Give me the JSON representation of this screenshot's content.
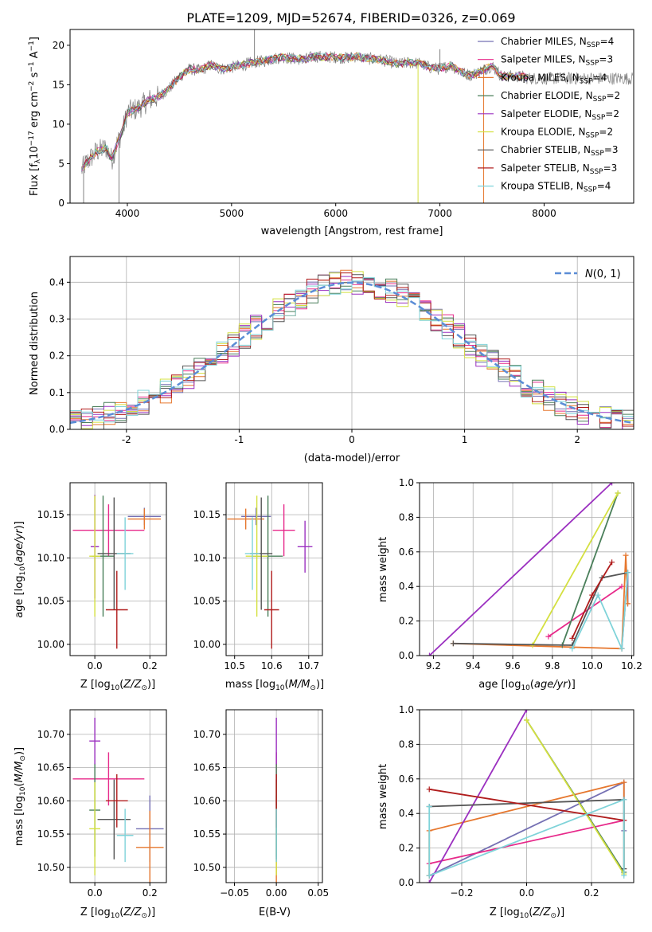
{
  "figure": {
    "title": "PLATE=1209, MJD=52674, FIBERID=0326, z=0.069"
  },
  "palette": {
    "Chabrier MILES": "#7570b3",
    "Salpeter MILES": "#e7298a",
    "Kroupa MILES": "#e6772e",
    "Chabrier ELODIE": "#4a7f5a",
    "Salpeter ELODIE": "#9b30c0",
    "Kroupa ELODIE": "#d4e040",
    "Chabrier STELIB": "#555555",
    "Salpeter STELIB": "#b01c1c",
    "Kroupa STELIB": "#7fd3d9",
    "gaussian": "#5b8dd6",
    "data": "#808080"
  },
  "chart_data": [
    {
      "id": "spectrum",
      "type": "line",
      "title": "PLATE=1209, MJD=52674, FIBERID=0326, z=0.069",
      "xlabel": "wavelength [Angstrom, rest frame]",
      "ylabel": "Flux [f_λ 10^-17 erg cm^-2 s^-1 A^-1]",
      "xlim": [
        3450,
        8860
      ],
      "ylim": [
        0,
        22
      ],
      "xticks": [
        4000,
        5000,
        6000,
        7000,
        8000
      ],
      "yticks": [
        0,
        5,
        10,
        15,
        20
      ],
      "grid": false,
      "legend_position": "top-right",
      "legend": [
        {
          "label": "Chabrier MILES, N_SSP=4",
          "main": "Chabrier MILES, N",
          "sub": "SSP",
          "tail": "=4"
        },
        {
          "label": "Salpeter MILES, N_SSP=3",
          "main": "Salpeter MILES, N",
          "sub": "SSP",
          "tail": "=3"
        },
        {
          "label": "Kroupa MILES, N_SSP=4",
          "main": "Kroupa MILES, N",
          "sub": "SSP",
          "tail": "=4"
        },
        {
          "label": "Chabrier ELODIE, N_SSP=2",
          "main": "Chabrier ELODIE, N",
          "sub": "SSP",
          "tail": "=2"
        },
        {
          "label": "Salpeter ELODIE, N_SSP=2",
          "main": "Salpeter ELODIE, N",
          "sub": "SSP",
          "tail": "=2"
        },
        {
          "label": "Kroupa ELODIE, N_SSP=2",
          "main": "Kroupa ELODIE, N",
          "sub": "SSP",
          "tail": "=2"
        },
        {
          "label": "Chabrier STELIB, N_SSP=3",
          "main": "Chabrier STELIB, N",
          "sub": "SSP",
          "tail": "=3"
        },
        {
          "label": "Salpeter STELIB, N_SSP=3",
          "main": "Salpeter STELIB, N",
          "sub": "SSP",
          "tail": "=3"
        },
        {
          "label": "Kroupa STELIB, N_SSP=4",
          "main": "Kroupa STELIB, N",
          "sub": "SSP",
          "tail": "=4"
        }
      ],
      "continuum": [
        [
          3560,
          4.2
        ],
        [
          3600,
          5.0
        ],
        [
          3700,
          6.5
        ],
        [
          3800,
          7.0
        ],
        [
          3850,
          5.5
        ],
        [
          3900,
          7.5
        ],
        [
          3950,
          9.0
        ],
        [
          4000,
          11.5
        ],
        [
          4100,
          12.0
        ],
        [
          4200,
          13.0
        ],
        [
          4300,
          13.5
        ],
        [
          4400,
          14.5
        ],
        [
          4500,
          16.0
        ],
        [
          4600,
          17.0
        ],
        [
          4700,
          16.8
        ],
        [
          4800,
          17.5
        ],
        [
          4900,
          17.0
        ],
        [
          5000,
          17.2
        ],
        [
          5100,
          17.5
        ],
        [
          5200,
          17.8
        ],
        [
          5300,
          18.0
        ],
        [
          5400,
          18.3
        ],
        [
          5500,
          18.5
        ],
        [
          5600,
          18.3
        ],
        [
          5700,
          18.2
        ],
        [
          5800,
          18.6
        ],
        [
          5900,
          18.5
        ],
        [
          6000,
          18.5
        ],
        [
          6100,
          18.4
        ],
        [
          6200,
          18.6
        ],
        [
          6300,
          18.3
        ],
        [
          6400,
          18.2
        ],
        [
          6500,
          18.0
        ],
        [
          6600,
          17.6
        ],
        [
          6700,
          17.8
        ],
        [
          6800,
          17.7
        ],
        [
          6900,
          17.2
        ],
        [
          7000,
          17.0
        ],
        [
          7100,
          17.5
        ],
        [
          7200,
          16.6
        ],
        [
          7300,
          16.2
        ],
        [
          7400,
          16.8
        ],
        [
          7500,
          17.4
        ],
        [
          7600,
          16.0
        ],
        [
          7700,
          16.1
        ],
        [
          7800,
          16.0
        ],
        [
          7850,
          15.8
        ]
      ],
      "spikes": [
        [
          3580,
          0
        ],
        [
          3920,
          0
        ],
        [
          5220,
          22
        ],
        [
          6790,
          0
        ],
        [
          7420,
          0
        ],
        [
          7000,
          19.5
        ]
      ]
    },
    {
      "id": "residuals",
      "type": "histogram",
      "xlabel": "(data-model)/error",
      "ylabel": "Normed distribution",
      "xlim": [
        -2.5,
        2.5
      ],
      "ylim": [
        0,
        0.47
      ],
      "xticks": [
        -2,
        -1,
        0,
        1,
        2
      ],
      "yticks": [
        0.0,
        0.1,
        0.2,
        0.3,
        0.4
      ],
      "grid": true,
      "legend_position": "top-right",
      "gaussian_label": "N(0,1)"
    },
    {
      "id": "age_vs_Z",
      "type": "scatter",
      "xlabel": "Z [log10(Z/Z_sun)]",
      "ylabel": "age [log10(age/yr)]",
      "xlim": [
        -0.09,
        0.26
      ],
      "ylim": [
        9.987,
        10.187
      ],
      "xticks": [
        0.0,
        0.2
      ],
      "yticks": [
        10.0,
        10.05,
        10.1,
        10.15
      ],
      "grid": true,
      "points": [
        {
          "series": "Chabrier MILES",
          "x": 0.18,
          "y": 10.148,
          "xerr": 0.06,
          "yerr": 0.01
        },
        {
          "series": "Salpeter MILES",
          "x": 0.05,
          "y": 10.132,
          "xerr": 0.13,
          "yerr": 0.03
        },
        {
          "series": "Kroupa MILES",
          "x": 0.18,
          "y": 10.145,
          "xerr": 0.06,
          "yerr": 0.012
        },
        {
          "series": "Chabrier ELODIE",
          "x": 0.03,
          "y": 10.102,
          "xerr": 0.04,
          "yerr": 0.07
        },
        {
          "series": "Salpeter ELODIE",
          "x": 0.0,
          "y": 10.113,
          "xerr": 0.015,
          "yerr": 0.06
        },
        {
          "series": "Kroupa ELODIE",
          "x": 0.0,
          "y": 10.102,
          "xerr": 0.02,
          "yerr": 0.07
        },
        {
          "series": "Chabrier STELIB",
          "x": 0.07,
          "y": 10.105,
          "xerr": 0.06,
          "yerr": 0.065
        },
        {
          "series": "Salpeter STELIB",
          "x": 0.08,
          "y": 10.04,
          "xerr": 0.04,
          "yerr": 0.045
        },
        {
          "series": "Kroupa STELIB",
          "x": 0.11,
          "y": 10.105,
          "xerr": 0.03,
          "yerr": 0.042
        }
      ]
    },
    {
      "id": "age_vs_mass",
      "type": "scatter",
      "xlabel": "mass [log10(M/M_sun)]",
      "ylabel": "",
      "xlim": [
        10.477,
        10.737
      ],
      "ylim": [
        9.987,
        10.187
      ],
      "xticks": [
        10.5,
        10.6,
        10.7
      ],
      "yticks": [
        10.0,
        10.05,
        10.1,
        10.15
      ],
      "grid": true,
      "points": [
        {
          "series": "Chabrier MILES",
          "x": 10.558,
          "y": 10.148,
          "xerr": 0.04,
          "yerr": 0.01
        },
        {
          "series": "Salpeter MILES",
          "x": 10.633,
          "y": 10.132,
          "xerr": 0.03,
          "yerr": 0.03
        },
        {
          "series": "Kroupa MILES",
          "x": 10.53,
          "y": 10.145,
          "xerr": 0.05,
          "yerr": 0.012
        },
        {
          "series": "Chabrier ELODIE",
          "x": 10.59,
          "y": 10.102,
          "xerr": 0.04,
          "yerr": 0.07
        },
        {
          "series": "Salpeter ELODIE",
          "x": 10.69,
          "y": 10.113,
          "xerr": 0.02,
          "yerr": 0.03
        },
        {
          "series": "Kroupa ELODIE",
          "x": 10.56,
          "y": 10.102,
          "xerr": 0.03,
          "yerr": 0.07
        },
        {
          "series": "Chabrier STELIB",
          "x": 10.572,
          "y": 10.105,
          "xerr": 0.03,
          "yerr": 0.065
        },
        {
          "series": "Salpeter STELIB",
          "x": 10.6,
          "y": 10.04,
          "xerr": 0.02,
          "yerr": 0.045
        },
        {
          "series": "Kroupa STELIB",
          "x": 10.548,
          "y": 10.105,
          "xerr": 0.02,
          "yerr": 0.042
        }
      ]
    },
    {
      "id": "mass_weight_vs_age",
      "type": "line",
      "xlabel": "age [log10(age/yr)]",
      "ylabel": "mass weight",
      "xlim": [
        9.13,
        10.21
      ],
      "ylim": [
        0,
        1
      ],
      "xticks": [
        9.2,
        9.4,
        9.6,
        9.8,
        10.0,
        10.2
      ],
      "yticks": [
        0.0,
        0.2,
        0.4,
        0.6,
        0.8,
        1.0
      ],
      "grid": true,
      "series": [
        {
          "name": "Chabrier MILES",
          "x": [
            10.15,
            10.18,
            10.18
          ],
          "y": [
            0.04,
            0.48,
            0.3
          ]
        },
        {
          "name": "Salpeter MILES",
          "x": [
            9.78,
            10.15
          ],
          "y": [
            0.11,
            0.4
          ]
        },
        {
          "name": "Kroupa MILES",
          "x": [
            9.3,
            10.15,
            10.17,
            10.18
          ],
          "y": [
            0.07,
            0.04,
            0.58,
            0.3
          ]
        },
        {
          "name": "Chabrier ELODIE",
          "x": [
            9.85,
            10.13
          ],
          "y": [
            0.06,
            0.94
          ]
        },
        {
          "name": "Salpeter ELODIE",
          "x": [
            9.18,
            10.1
          ],
          "y": [
            0.0,
            1.0
          ]
        },
        {
          "name": "Kroupa ELODIE",
          "x": [
            9.7,
            10.13
          ],
          "y": [
            0.06,
            0.94
          ]
        },
        {
          "name": "Chabrier STELIB",
          "x": [
            9.3,
            9.9,
            10.05,
            10.18
          ],
          "y": [
            0.07,
            0.06,
            0.45,
            0.48
          ]
        },
        {
          "name": "Salpeter STELIB",
          "x": [
            9.9,
            10.0,
            10.1
          ],
          "y": [
            0.1,
            0.35,
            0.54
          ]
        },
        {
          "name": "Kroupa STELIB",
          "x": [
            9.9,
            10.03,
            10.15,
            10.18
          ],
          "y": [
            0.04,
            0.35,
            0.04,
            0.48
          ]
        }
      ]
    },
    {
      "id": "mass_vs_Z",
      "type": "scatter",
      "xlabel": "Z [log10(Z/Z_sun)]",
      "ylabel": "mass [log10(M/M_sun)]",
      "xlim": [
        -0.09,
        0.26
      ],
      "ylim": [
        10.477,
        10.737
      ],
      "xticks": [
        0.0,
        0.2
      ],
      "yticks": [
        10.5,
        10.55,
        10.6,
        10.65,
        10.7
      ],
      "grid": true,
      "points": [
        {
          "series": "Chabrier MILES",
          "x": 0.2,
          "y": 10.558,
          "xerr": 0.05,
          "yerr": 0.05
        },
        {
          "series": "Salpeter MILES",
          "x": 0.05,
          "y": 10.633,
          "xerr": 0.13,
          "yerr": 0.04
        },
        {
          "series": "Kroupa MILES",
          "x": 0.2,
          "y": 10.53,
          "xerr": 0.05,
          "yerr": 0.055
        },
        {
          "series": "Chabrier ELODIE",
          "x": 0.0,
          "y": 10.586,
          "xerr": 0.02,
          "yerr": 0.07
        },
        {
          "series": "Salpeter ELODIE",
          "x": 0.0,
          "y": 10.69,
          "xerr": 0.02,
          "yerr": 0.035
        },
        {
          "series": "Kroupa ELODIE",
          "x": 0.0,
          "y": 10.558,
          "xerr": 0.02,
          "yerr": 0.07
        },
        {
          "series": "Chabrier STELIB",
          "x": 0.07,
          "y": 10.572,
          "xerr": 0.06,
          "yerr": 0.06
        },
        {
          "series": "Salpeter STELIB",
          "x": 0.08,
          "y": 10.6,
          "xerr": 0.04,
          "yerr": 0.04
        },
        {
          "series": "Kroupa STELIB",
          "x": 0.11,
          "y": 10.548,
          "xerr": 0.03,
          "yerr": 0.04
        }
      ]
    },
    {
      "id": "mass_vs_ebv",
      "type": "scatter",
      "xlabel": "E(B-V)",
      "ylabel": "",
      "xlim": [
        -0.06,
        0.055
      ],
      "ylim": [
        10.477,
        10.737
      ],
      "xticks": [
        -0.05,
        0.0,
        0.05
      ],
      "xtick_labels": [
        "−0.05",
        "0.00",
        "0.05"
      ],
      "yticks": [
        10.5,
        10.55,
        10.6,
        10.65,
        10.7
      ],
      "grid": true,
      "points": [
        {
          "series": "Chabrier MILES",
          "x": 0.0,
          "y": 10.558,
          "xerr": 0.0,
          "yerr": 0.05
        },
        {
          "series": "Salpeter MILES",
          "x": 0.0,
          "y": 10.633,
          "xerr": 0.0,
          "yerr": 0.04
        },
        {
          "series": "Kroupa MILES",
          "x": 0.0,
          "y": 10.53,
          "xerr": 0.0,
          "yerr": 0.055
        },
        {
          "series": "Chabrier ELODIE",
          "x": 0.0,
          "y": 10.586,
          "xerr": 0.0,
          "yerr": 0.07
        },
        {
          "series": "Salpeter ELODIE",
          "x": 0.0,
          "y": 10.69,
          "xerr": 0.0,
          "yerr": 0.035
        },
        {
          "series": "Kroupa ELODIE",
          "x": 0.0,
          "y": 10.558,
          "xerr": 0.0,
          "yerr": 0.07
        },
        {
          "series": "Chabrier STELIB",
          "x": 0.0,
          "y": 10.572,
          "xerr": 0.0,
          "yerr": 0.06
        },
        {
          "series": "Salpeter STELIB",
          "x": 0.0,
          "y": 10.6,
          "xerr": 0.0,
          "yerr": 0.04
        },
        {
          "series": "Kroupa STELIB",
          "x": 0.0,
          "y": 10.548,
          "xerr": 0.0,
          "yerr": 0.04
        }
      ]
    },
    {
      "id": "mass_weight_vs_Z",
      "type": "line",
      "xlabel": "Z [log10(Z/Z_sun)]",
      "ylabel": "mass weight",
      "xlim": [
        -0.33,
        0.33
      ],
      "ylim": [
        0,
        1
      ],
      "xticks": [
        -0.2,
        0.0,
        0.2
      ],
      "xtick_labels": [
        "−0.2",
        "0.0",
        "0.2"
      ],
      "yticks": [
        0.0,
        0.2,
        0.4,
        0.6,
        0.8,
        1.0
      ],
      "grid": true,
      "series": [
        {
          "name": "Chabrier MILES",
          "x": [
            -0.3,
            0.3,
            0.3
          ],
          "y": [
            0.04,
            0.58,
            0.3
          ]
        },
        {
          "name": "Salpeter MILES",
          "x": [
            -0.3,
            0.3
          ],
          "y": [
            0.11,
            0.36
          ]
        },
        {
          "name": "Kroupa MILES",
          "x": [
            -0.3,
            -0.3,
            0.3,
            0.3
          ],
          "y": [
            0.04,
            0.3,
            0.58,
            0.08
          ]
        },
        {
          "name": "Chabrier ELODIE",
          "x": [
            0.0,
            0.3
          ],
          "y": [
            0.94,
            0.06
          ]
        },
        {
          "name": "Salpeter ELODIE",
          "x": [
            -0.3,
            0.0
          ],
          "y": [
            0.0,
            1.0
          ]
        },
        {
          "name": "Kroupa ELODIE",
          "x": [
            0.0,
            0.3
          ],
          "y": [
            0.94,
            0.05
          ]
        },
        {
          "name": "Chabrier STELIB",
          "x": [
            -0.3,
            0.3,
            0.3
          ],
          "y": [
            0.44,
            0.48,
            0.08
          ]
        },
        {
          "name": "Salpeter STELIB",
          "x": [
            -0.3,
            0.3
          ],
          "y": [
            0.54,
            0.36
          ]
        },
        {
          "name": "Kroupa STELIB",
          "x": [
            -0.3,
            -0.3,
            0.3,
            0.3
          ],
          "y": [
            0.44,
            0.04,
            0.48,
            0.04
          ]
        }
      ]
    }
  ]
}
